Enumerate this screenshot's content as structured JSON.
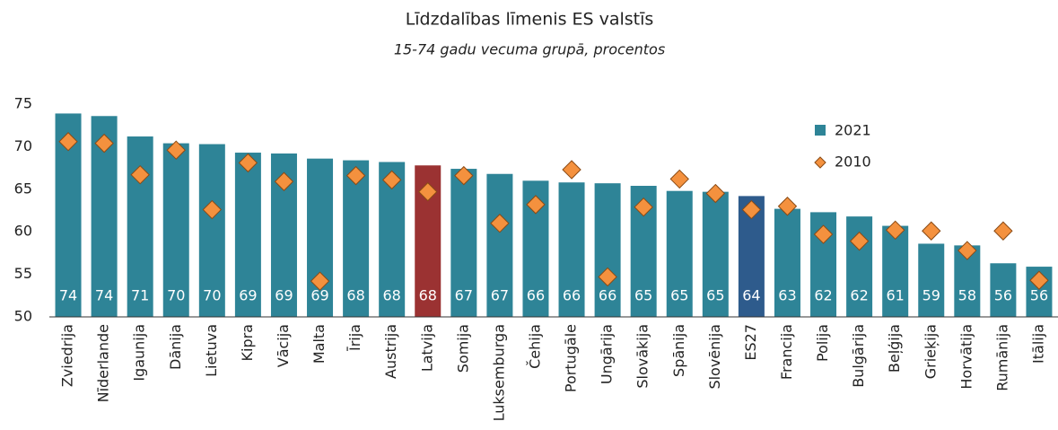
{
  "chart_data": {
    "type": "bar",
    "title": "Līdzdalības līmenis ES valstīs",
    "subtitle": "15-74 gadu vecuma grupā, procentos",
    "categories": [
      "Zviedrija",
      "Nīderlande",
      "Igaunija",
      "Dānija",
      "Lietuva",
      "Kipra",
      "Vācija",
      "Malta",
      "Īrija",
      "Austrija",
      "Latvija",
      "Somija",
      "Luksemburga",
      "Čehija",
      "Portugāle",
      "Ungārija",
      "Slovākija",
      "Spānija",
      "Slovēnija",
      "ES27",
      "Francija",
      "Polija",
      "Bulgārija",
      "Beļģija",
      "Grieķija",
      "Horvātija",
      "Rumānija",
      "Itālija"
    ],
    "series": [
      {
        "name": "2021",
        "type": "bar",
        "color": "#2e8497",
        "colors": [
          "#2e8497",
          "#2e8497",
          "#2e8497",
          "#2e8497",
          "#2e8497",
          "#2e8497",
          "#2e8497",
          "#2e8497",
          "#2e8497",
          "#2e8497",
          "#9b3232",
          "#2e8497",
          "#2e8497",
          "#2e8497",
          "#2e8497",
          "#2e8497",
          "#2e8497",
          "#2e8497",
          "#2e8497",
          "#2e5b8c",
          "#2e8497",
          "#2e8497",
          "#2e8497",
          "#2e8497",
          "#2e8497",
          "#2e8497",
          "#2e8497",
          "#2e8497"
        ],
        "values": [
          73.9,
          73.6,
          71.2,
          70.4,
          70.3,
          69.3,
          69.2,
          68.6,
          68.4,
          68.2,
          67.8,
          67.4,
          66.8,
          66.0,
          65.8,
          65.7,
          65.4,
          64.8,
          64.7,
          64.2,
          62.7,
          62.3,
          61.8,
          60.7,
          58.6,
          58.4,
          56.3,
          55.9
        ],
        "value_labels": [
          "74",
          "74",
          "71",
          "70",
          "70",
          "69",
          "69",
          "69",
          "68",
          "68",
          "68",
          "67",
          "67",
          "66",
          "66",
          "66",
          "65",
          "65",
          "65",
          "64",
          "63",
          "62",
          "62",
          "61",
          "59",
          "58",
          "56",
          "56"
        ]
      },
      {
        "name": "2010",
        "type": "scatter",
        "color": "#f4913e",
        "values": [
          70.6,
          70.4,
          66.7,
          69.6,
          62.6,
          68.1,
          65.9,
          54.2,
          66.6,
          66.1,
          64.7,
          66.6,
          61.0,
          63.2,
          67.3,
          54.7,
          62.9,
          66.2,
          64.5,
          62.6,
          63.0,
          59.7,
          58.9,
          60.2,
          60.1,
          57.8,
          60.1,
          54.3
        ]
      }
    ],
    "ylim": [
      50,
      75
    ],
    "yticks": [
      50,
      55,
      60,
      65,
      70,
      75
    ]
  }
}
